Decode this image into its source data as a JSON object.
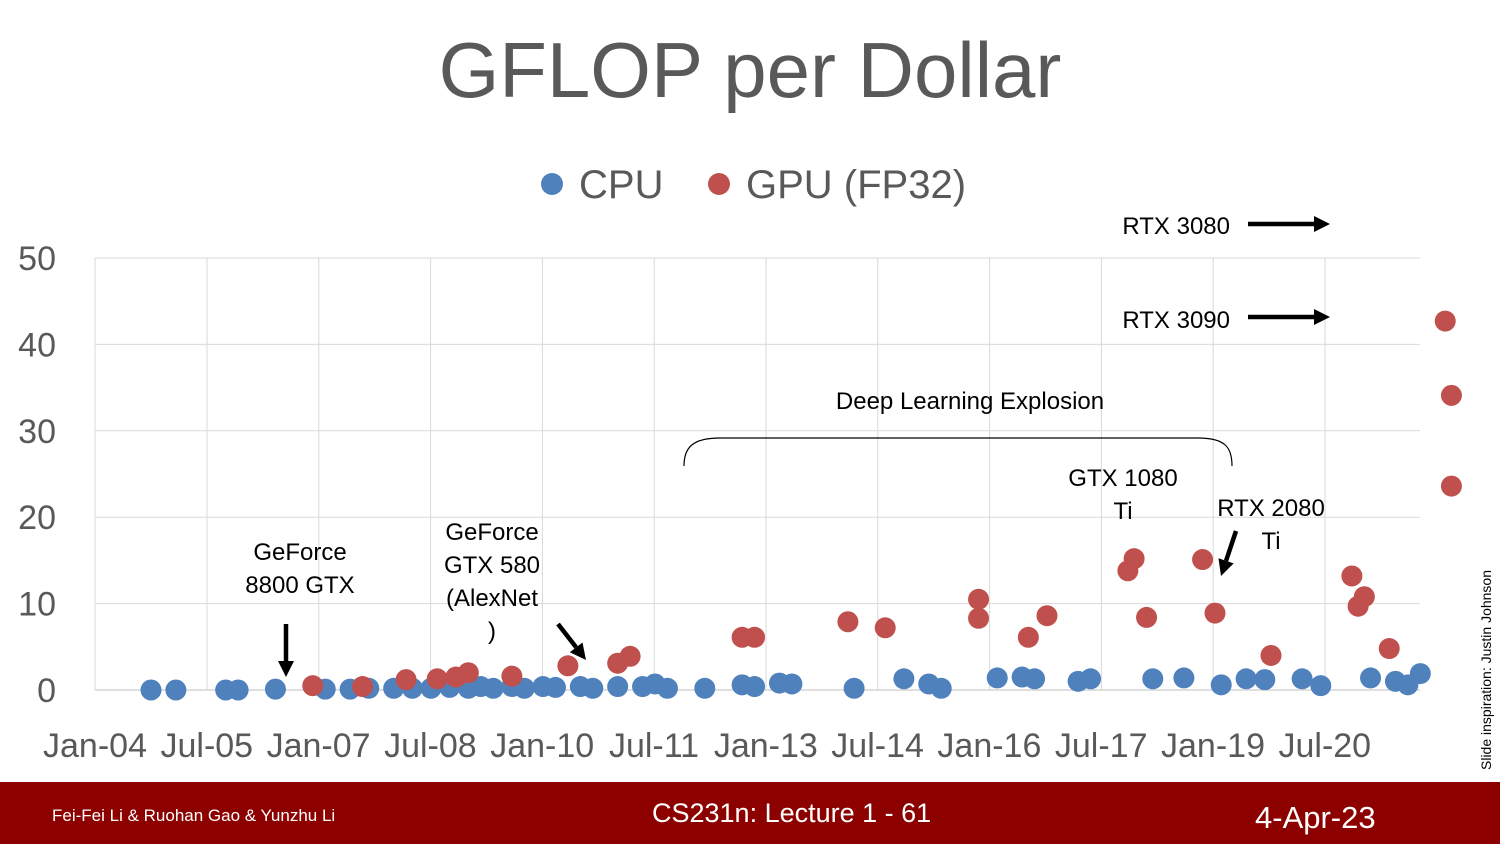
{
  "slide": {
    "title": "GFLOP per Dollar",
    "credit": "Slide inspiration: Justin Johnson"
  },
  "footer": {
    "authors": "Fei-Fei Li & Ruohan Gao & Yunzhu Li",
    "lecture": "CS231n: Lecture 1 -  61",
    "date": "4-Apr-23",
    "background_color": "#8c0000"
  },
  "chart_data": {
    "type": "scatter",
    "title": "GFLOP per Dollar",
    "xlabel": "",
    "ylabel": "",
    "x_ticks": [
      "Jan-04",
      "Jul-05",
      "Jan-07",
      "Jul-08",
      "Jan-10",
      "Jul-11",
      "Jan-13",
      "Jul-14",
      "Jan-16",
      "Jul-17",
      "Jan-19",
      "Jul-20"
    ],
    "y_ticks": [
      "0",
      "10",
      "20",
      "30",
      "40",
      "50"
    ],
    "ylim": [
      0,
      50
    ],
    "xlim": [
      "2004-01",
      "2021-10"
    ],
    "grid": true,
    "legend_position": "top",
    "series": [
      {
        "name": "CPU",
        "color": "#4f81bd",
        "points": [
          [
            "2004-10",
            0.0
          ],
          [
            "2005-02",
            0.0
          ],
          [
            "2005-10",
            0.0
          ],
          [
            "2005-12",
            0.0
          ],
          [
            "2006-06",
            0.1
          ],
          [
            "2007-02",
            0.1
          ],
          [
            "2007-06",
            0.1
          ],
          [
            "2007-09",
            0.2
          ],
          [
            "2008-01",
            0.2
          ],
          [
            "2008-04",
            0.2
          ],
          [
            "2008-07",
            0.2
          ],
          [
            "2008-10",
            0.3
          ],
          [
            "2009-01",
            0.2
          ],
          [
            "2009-03",
            0.4
          ],
          [
            "2009-05",
            0.2
          ],
          [
            "2009-08",
            0.4
          ],
          [
            "2009-10",
            0.2
          ],
          [
            "2010-01",
            0.4
          ],
          [
            "2010-03",
            0.3
          ],
          [
            "2010-07",
            0.4
          ],
          [
            "2010-09",
            0.2
          ],
          [
            "2011-01",
            0.4
          ],
          [
            "2011-05",
            0.4
          ],
          [
            "2011-07",
            0.7
          ],
          [
            "2011-09",
            0.2
          ],
          [
            "2012-03",
            0.2
          ],
          [
            "2012-09",
            0.6
          ],
          [
            "2012-11",
            0.4
          ],
          [
            "2013-03",
            0.8
          ],
          [
            "2013-05",
            0.7
          ],
          [
            "2014-03",
            0.2
          ],
          [
            "2014-11",
            1.3
          ],
          [
            "2015-03",
            0.7
          ],
          [
            "2015-05",
            0.2
          ],
          [
            "2016-02",
            1.4
          ],
          [
            "2016-06",
            1.5
          ],
          [
            "2016-08",
            1.3
          ],
          [
            "2017-03",
            1.0
          ],
          [
            "2017-05",
            1.3
          ],
          [
            "2018-03",
            1.3
          ],
          [
            "2018-08",
            1.4
          ],
          [
            "2019-02",
            0.6
          ],
          [
            "2019-06",
            1.3
          ],
          [
            "2019-09",
            1.2
          ],
          [
            "2020-03",
            1.3
          ],
          [
            "2020-06",
            0.5
          ],
          [
            "2021-02",
            1.4
          ],
          [
            "2021-06",
            1.0
          ],
          [
            "2021-08",
            0.6
          ],
          [
            "2021-10",
            1.9
          ]
        ]
      },
      {
        "name": "GPU (FP32)",
        "color": "#c0504d",
        "points": [
          [
            "2006-12",
            0.5
          ],
          [
            "2007-08",
            0.4
          ],
          [
            "2008-03",
            1.2
          ],
          [
            "2008-08",
            1.3
          ],
          [
            "2008-11",
            1.5
          ],
          [
            "2009-01",
            2.0
          ],
          [
            "2009-08",
            1.6
          ],
          [
            "2010-05",
            2.8
          ],
          [
            "2011-01",
            3.1
          ],
          [
            "2011-03",
            3.9
          ],
          [
            "2012-09",
            6.1
          ],
          [
            "2012-11",
            6.1
          ],
          [
            "2014-02",
            7.9
          ],
          [
            "2014-08",
            7.2
          ],
          [
            "2015-11",
            10.5
          ],
          [
            "2015-11",
            8.3
          ],
          [
            "2016-07",
            6.1
          ],
          [
            "2016-10",
            8.6
          ],
          [
            "2017-11",
            13.8
          ],
          [
            "2017-12",
            15.2
          ],
          [
            "2018-02",
            8.4
          ],
          [
            "2018-11",
            15.1
          ],
          [
            "2019-01",
            8.9
          ],
          [
            "2019-10",
            4.0
          ],
          [
            "2020-11",
            13.2
          ],
          [
            "2020-12",
            9.7
          ],
          [
            "2021-01",
            10.8
          ],
          [
            "2021-05",
            4.8
          ],
          [
            "2022-02",
            42.7
          ],
          [
            "2022-03",
            34.1
          ],
          [
            "2022-03",
            23.6
          ]
        ]
      }
    ],
    "annotations": [
      {
        "text": "GeForce\n8800 GTX"
      },
      {
        "text": "GeForce\nGTX 580\n(AlexNet\n)"
      },
      {
        "text": "Deep Learning Explosion"
      },
      {
        "text": "GTX 1080\nTi"
      },
      {
        "text": "RTX 2080\nTi"
      },
      {
        "text": "RTX 3090"
      },
      {
        "text": "RTX 3080"
      }
    ]
  }
}
